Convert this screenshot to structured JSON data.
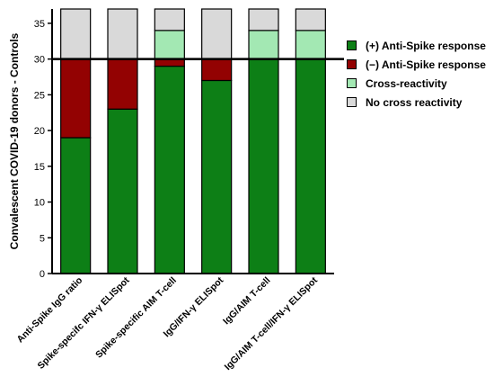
{
  "chart_data": {
    "type": "bar",
    "stacked": true,
    "title": "",
    "xlabel": "",
    "ylabel": "Convalescent COVID-19 donors - Controls",
    "ylim": [
      0,
      37
    ],
    "yticks": [
      0,
      5,
      10,
      15,
      20,
      25,
      30,
      35
    ],
    "reference_line": 30,
    "categories": [
      "Anti-Spike IgG ratio",
      "Spike-specifc IFN-γ ELISpot",
      "Spike-specific AIM T-cell",
      "IgG/IFN-γ ELISpot",
      "IgG/AIM T-cell",
      "IgG/AIM T-cell/IFN-γ ELISpot"
    ],
    "series": [
      {
        "name": "(+) Anti-Spike response",
        "color": "#0d7f16",
        "values": [
          19,
          23,
          29,
          27,
          30,
          30
        ]
      },
      {
        "name": "(−) Anti-Spike response",
        "color": "#930202",
        "values": [
          11,
          7,
          1,
          3,
          0,
          0
        ]
      },
      {
        "name": "Cross-reactivity",
        "color": "#a3e8b3",
        "values": [
          0,
          0,
          4,
          0,
          4,
          4
        ]
      },
      {
        "name": "No cross reactivity",
        "color": "#d9d9d9",
        "values": [
          7,
          7,
          3,
          7,
          3,
          3
        ]
      }
    ],
    "legend_position": "right",
    "grid": false
  }
}
